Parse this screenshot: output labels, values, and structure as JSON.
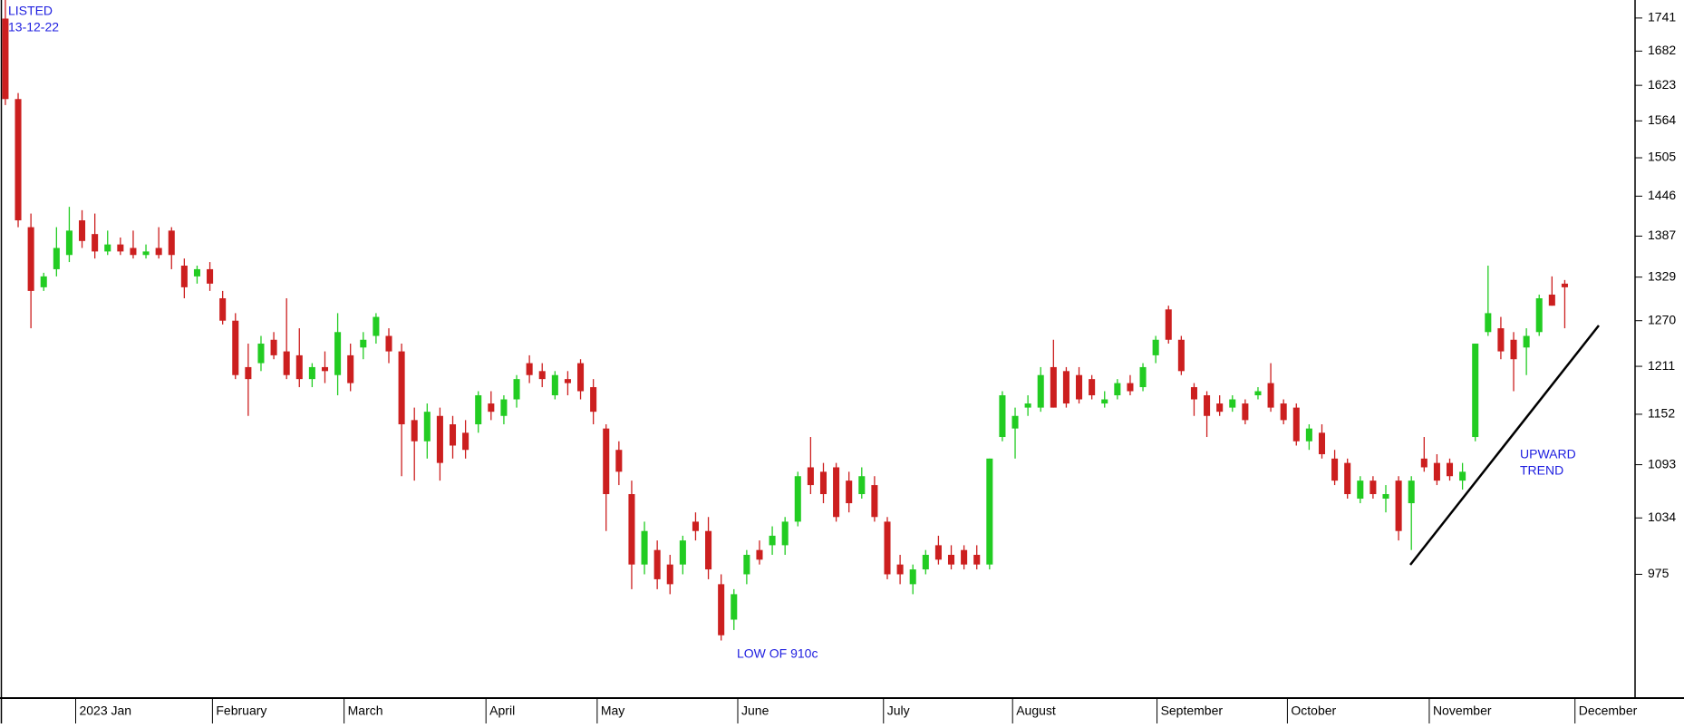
{
  "chart_data": {
    "type": "candlestick",
    "log_scale": true,
    "grid": false,
    "up_color": "#22cc22",
    "down_color": "#cc1f1f",
    "ylim": [
      857,
      1774
    ],
    "yticks": [
      975,
      1034,
      1093,
      1152,
      1211,
      1270,
      1329,
      1387,
      1446,
      1505,
      1564,
      1623,
      1682,
      1741
    ],
    "xlim": [
      -0.42,
      127.5
    ],
    "xticks": [
      {
        "value": 5.5,
        "label": "2023 Jan"
      },
      {
        "value": 16.2,
        "label": "February"
      },
      {
        "value": 26.5,
        "label": "March"
      },
      {
        "value": 37.6,
        "label": "April"
      },
      {
        "value": 46.3,
        "label": "May"
      },
      {
        "value": 57.3,
        "label": "June"
      },
      {
        "value": 68.7,
        "label": "July"
      },
      {
        "value": 78.8,
        "label": "August"
      },
      {
        "value": 90.1,
        "label": "September"
      },
      {
        "value": 100.3,
        "label": "October"
      },
      {
        "value": 111.4,
        "label": "November"
      },
      {
        "value": 122.8,
        "label": "December"
      }
    ],
    "annotations": [
      "LISTED",
      "13-12-22",
      "LOW OF 910c",
      "UPWARD",
      "TREND"
    ],
    "open": [
      1740,
      1600,
      1400,
      1315,
      1340,
      1360,
      1410,
      1390,
      1365,
      1375,
      1370,
      1360,
      1370,
      1395,
      1345,
      1330,
      1340,
      1300,
      1270,
      1210,
      1215,
      1245,
      1230,
      1225,
      1195,
      1210,
      1200,
      1225,
      1235,
      1250,
      1250,
      1230,
      1145,
      1120,
      1150,
      1140,
      1130,
      1140,
      1165,
      1150,
      1170,
      1215,
      1205,
      1175,
      1195,
      1215,
      1185,
      1135,
      1110,
      1060,
      985,
      1000,
      985,
      985,
      1030,
      1020,
      965,
      930,
      975,
      1000,
      1005,
      1005,
      1030,
      1090,
      1085,
      1090,
      1075,
      1060,
      1070,
      1030,
      985,
      965,
      980,
      1005,
      995,
      1000,
      995,
      985,
      1125,
      1135,
      1160,
      1160,
      1210,
      1205,
      1200,
      1195,
      1165,
      1175,
      1190,
      1185,
      1225,
      1285,
      1245,
      1185,
      1175,
      1165,
      1160,
      1165,
      1175,
      1190,
      1165,
      1160,
      1120,
      1130,
      1100,
      1095,
      1055,
      1075,
      1055,
      1075,
      1050,
      1100,
      1095,
      1095,
      1075,
      1125,
      1255,
      1260,
      1245,
      1235,
      1255,
      1305,
      1320
    ],
    "high": [
      1774,
      1610,
      1420,
      1335,
      1400,
      1430,
      1425,
      1420,
      1395,
      1385,
      1395,
      1375,
      1400,
      1400,
      1355,
      1345,
      1350,
      1310,
      1280,
      1240,
      1250,
      1255,
      1300,
      1260,
      1215,
      1230,
      1280,
      1240,
      1255,
      1280,
      1260,
      1240,
      1160,
      1165,
      1160,
      1150,
      1145,
      1180,
      1180,
      1175,
      1200,
      1225,
      1215,
      1205,
      1205,
      1220,
      1195,
      1140,
      1120,
      1075,
      1030,
      1010,
      995,
      1015,
      1040,
      1035,
      975,
      960,
      1000,
      1010,
      1025,
      1035,
      1085,
      1125,
      1095,
      1095,
      1085,
      1090,
      1080,
      1035,
      995,
      985,
      1000,
      1015,
      1005,
      1005,
      1005,
      1100,
      1180,
      1160,
      1175,
      1210,
      1245,
      1210,
      1210,
      1200,
      1180,
      1195,
      1200,
      1215,
      1250,
      1290,
      1250,
      1190,
      1180,
      1175,
      1175,
      1170,
      1185,
      1215,
      1170,
      1165,
      1140,
      1140,
      1110,
      1100,
      1080,
      1080,
      1070,
      1080,
      1080,
      1125,
      1105,
      1100,
      1095,
      1240,
      1345,
      1275,
      1255,
      1260,
      1305,
      1330,
      1325
    ],
    "low": [
      1590,
      1400,
      1260,
      1310,
      1330,
      1350,
      1370,
      1355,
      1360,
      1360,
      1355,
      1355,
      1355,
      1340,
      1300,
      1320,
      1310,
      1265,
      1195,
      1150,
      1205,
      1220,
      1195,
      1185,
      1185,
      1190,
      1175,
      1180,
      1220,
      1240,
      1215,
      1080,
      1075,
      1100,
      1075,
      1100,
      1100,
      1130,
      1145,
      1140,
      1160,
      1190,
      1185,
      1170,
      1175,
      1170,
      1140,
      1020,
      1070,
      960,
      975,
      960,
      955,
      975,
      1010,
      970,
      910,
      920,
      965,
      985,
      995,
      995,
      1025,
      1060,
      1050,
      1030,
      1040,
      1055,
      1030,
      970,
      965,
      955,
      975,
      985,
      980,
      980,
      980,
      980,
      1120,
      1100,
      1150,
      1155,
      1160,
      1160,
      1165,
      1170,
      1160,
      1170,
      1175,
      1180,
      1215,
      1240,
      1200,
      1150,
      1125,
      1150,
      1155,
      1140,
      1170,
      1155,
      1140,
      1115,
      1110,
      1100,
      1070,
      1055,
      1050,
      1055,
      1040,
      1010,
      1000,
      1085,
      1070,
      1075,
      1065,
      1120,
      1250,
      1220,
      1180,
      1200,
      1250,
      1290,
      1260
    ],
    "close": [
      1600,
      1410,
      1310,
      1330,
      1370,
      1395,
      1380,
      1365,
      1375,
      1365,
      1360,
      1365,
      1360,
      1360,
      1315,
      1340,
      1320,
      1270,
      1200,
      1195,
      1240,
      1225,
      1200,
      1195,
      1210,
      1205,
      1255,
      1190,
      1245,
      1275,
      1230,
      1140,
      1120,
      1155,
      1095,
      1115,
      1110,
      1175,
      1155,
      1170,
      1195,
      1200,
      1195,
      1200,
      1190,
      1180,
      1155,
      1060,
      1085,
      985,
      1020,
      970,
      965,
      1010,
      1020,
      980,
      915,
      955,
      995,
      990,
      1015,
      1030,
      1080,
      1070,
      1060,
      1035,
      1050,
      1080,
      1035,
      975,
      975,
      980,
      995,
      990,
      985,
      985,
      985,
      1100,
      1175,
      1150,
      1165,
      1200,
      1160,
      1165,
      1170,
      1175,
      1170,
      1190,
      1180,
      1210,
      1245,
      1245,
      1205,
      1170,
      1150,
      1155,
      1170,
      1145,
      1180,
      1160,
      1145,
      1120,
      1135,
      1105,
      1075,
      1060,
      1075,
      1060,
      1060,
      1020,
      1075,
      1090,
      1075,
      1080,
      1085,
      1240,
      1280,
      1230,
      1220,
      1250,
      1300,
      1290,
      1315
    ]
  }
}
